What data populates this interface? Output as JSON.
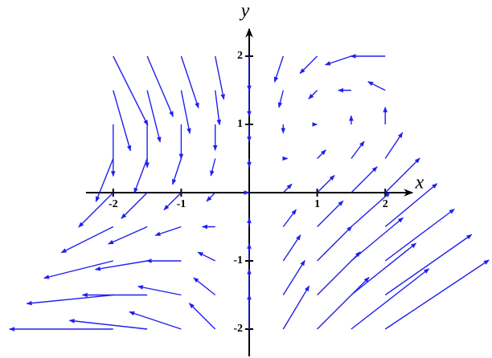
{
  "chart_data": {
    "type": "quiver",
    "xlabel": "x",
    "ylabel": "y",
    "color": "#1f1ff0",
    "xlim": [
      -2.4,
      2.4
    ],
    "ylim": [
      -2.4,
      2.4
    ],
    "xticks": [
      -2,
      -1,
      1,
      2
    ],
    "yticks": [
      -2,
      -1,
      1,
      2
    ],
    "x": [
      -2,
      -1.5,
      -1,
      -0.5,
      0,
      0.5,
      1,
      1.5,
      2,
      -2,
      -1.5,
      -1,
      -0.5,
      0,
      0.5,
      1,
      1.5,
      2,
      -2,
      -1.5,
      -1,
      -0.5,
      0,
      0.5,
      1,
      1.5,
      2,
      -2,
      -1.5,
      -1,
      -0.5,
      0,
      0.5,
      1,
      1.5,
      2,
      -2,
      -1.5,
      -1,
      -0.5,
      0,
      0.5,
      1,
      1.5,
      2,
      -2,
      -1.5,
      -1,
      -0.5,
      0,
      0.5,
      1,
      1.5,
      2,
      -2,
      -1.5,
      -1,
      -0.5,
      0,
      0.5,
      1,
      1.5,
      2,
      -2,
      -1.5,
      -1,
      -0.5,
      0,
      0.5,
      1,
      1.5,
      2,
      -2,
      -1.5,
      -1,
      -0.5,
      0,
      0.5,
      1,
      1.5,
      2
    ],
    "y": [
      2,
      2,
      2,
      2,
      2,
      2,
      2,
      2,
      2,
      1.5,
      1.5,
      1.5,
      1.5,
      1.5,
      1.5,
      1.5,
      1.5,
      1.5,
      1,
      1,
      1,
      1,
      1,
      1,
      1,
      1,
      1,
      0.5,
      0.5,
      0.5,
      0.5,
      0.5,
      0.5,
      0.5,
      0.5,
      0.5,
      0,
      0,
      0,
      0,
      0,
      0,
      0,
      0,
      0,
      -0.5,
      -0.5,
      -0.5,
      -0.5,
      -0.5,
      -0.5,
      -0.5,
      -0.5,
      -0.5,
      -1,
      -1,
      -1,
      -1,
      -1,
      -1,
      -1,
      -1,
      -1,
      -1.5,
      -1.5,
      -1.5,
      -1.5,
      -1.5,
      -1.5,
      -1.5,
      -1.5,
      -1.5,
      -2,
      -2,
      -2,
      -2,
      -2,
      -2,
      -2,
      -2,
      -2
    ],
    "u": [
      2,
      1.5,
      1,
      0.5,
      0,
      -0.5,
      -1,
      -1.5,
      -2,
      1,
      0.75,
      0.5,
      0.25,
      0,
      -0.25,
      -0.5,
      -0.75,
      -1,
      0,
      0,
      0,
      0,
      0,
      0,
      0,
      0,
      0,
      -1,
      -0.75,
      -0.5,
      -0.25,
      0,
      0.25,
      0.5,
      0.75,
      1,
      -2,
      -1.5,
      -1,
      -0.5,
      0,
      0.5,
      1,
      1.5,
      2,
      -3,
      -2.25,
      -1.5,
      -0.75,
      0,
      0.75,
      1.5,
      2.25,
      3,
      -4,
      -3,
      -2,
      -1,
      0,
      1,
      2,
      3,
      4,
      -5,
      -3.75,
      -2.5,
      -1.25,
      0,
      1.25,
      2.5,
      3.75,
      5,
      -6,
      -4.5,
      -3,
      -1.5,
      0,
      1.5,
      3,
      4.5,
      6
    ],
    "v": [
      -4,
      -3.5,
      -3,
      -2.5,
      -2,
      -1.5,
      -1,
      -0.5,
      0,
      -3.5,
      -3,
      -2.5,
      -2,
      -1.5,
      -1,
      -0.5,
      0,
      0.5,
      -3,
      -2.5,
      -2,
      -1.5,
      -1,
      -0.5,
      0,
      0.5,
      1,
      -2.5,
      -2,
      -1.5,
      -1,
      -0.5,
      0,
      0.5,
      1,
      1.5,
      -2,
      -1.5,
      -1,
      -0.5,
      0,
      0.5,
      1,
      1.5,
      2,
      -1.5,
      -1,
      -0.5,
      0,
      0.5,
      1,
      1.5,
      2,
      2.5,
      -1,
      -0.5,
      0,
      0.5,
      1,
      1.5,
      2,
      2.5,
      3,
      -0.5,
      0,
      0.5,
      1,
      1.5,
      2,
      2.5,
      3,
      3.5,
      0,
      0.5,
      1,
      1.5,
      2,
      2.5,
      3,
      3.5,
      4
    ]
  }
}
